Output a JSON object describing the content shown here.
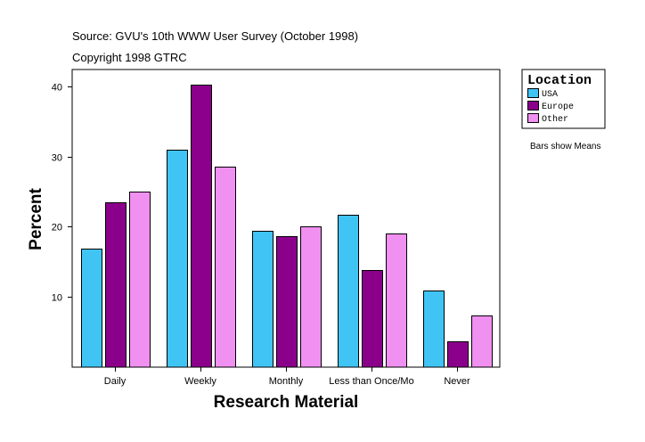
{
  "header": {
    "source": "Source: GVU's 10th WWW User Survey (October 1998)",
    "copyright": "Copyright 1998 GTRC"
  },
  "note": "Bars show Means",
  "chart_data": {
    "type": "bar",
    "title": "",
    "xlabel": "Research Material",
    "ylabel": "Percent",
    "categories": [
      "Daily",
      "Weekly",
      "Monthly",
      "Less than Once/Mo",
      "Never"
    ],
    "series": [
      {
        "name": "USA",
        "color": "#40C4F4",
        "values": [
          16.9,
          31.0,
          19.4,
          21.7,
          10.9
        ]
      },
      {
        "name": "Europe",
        "color": "#8B008B",
        "values": [
          23.5,
          40.2,
          18.7,
          13.8,
          3.7
        ]
      },
      {
        "name": "Other",
        "color": "#F090F0",
        "values": [
          25.0,
          28.5,
          20.0,
          19.0,
          7.3
        ]
      }
    ],
    "ylim": [
      0,
      42.4
    ],
    "yticks": [
      10,
      20,
      30,
      40
    ],
    "legend": {
      "title": "Location",
      "placement": "top-right"
    },
    "grid": false
  }
}
